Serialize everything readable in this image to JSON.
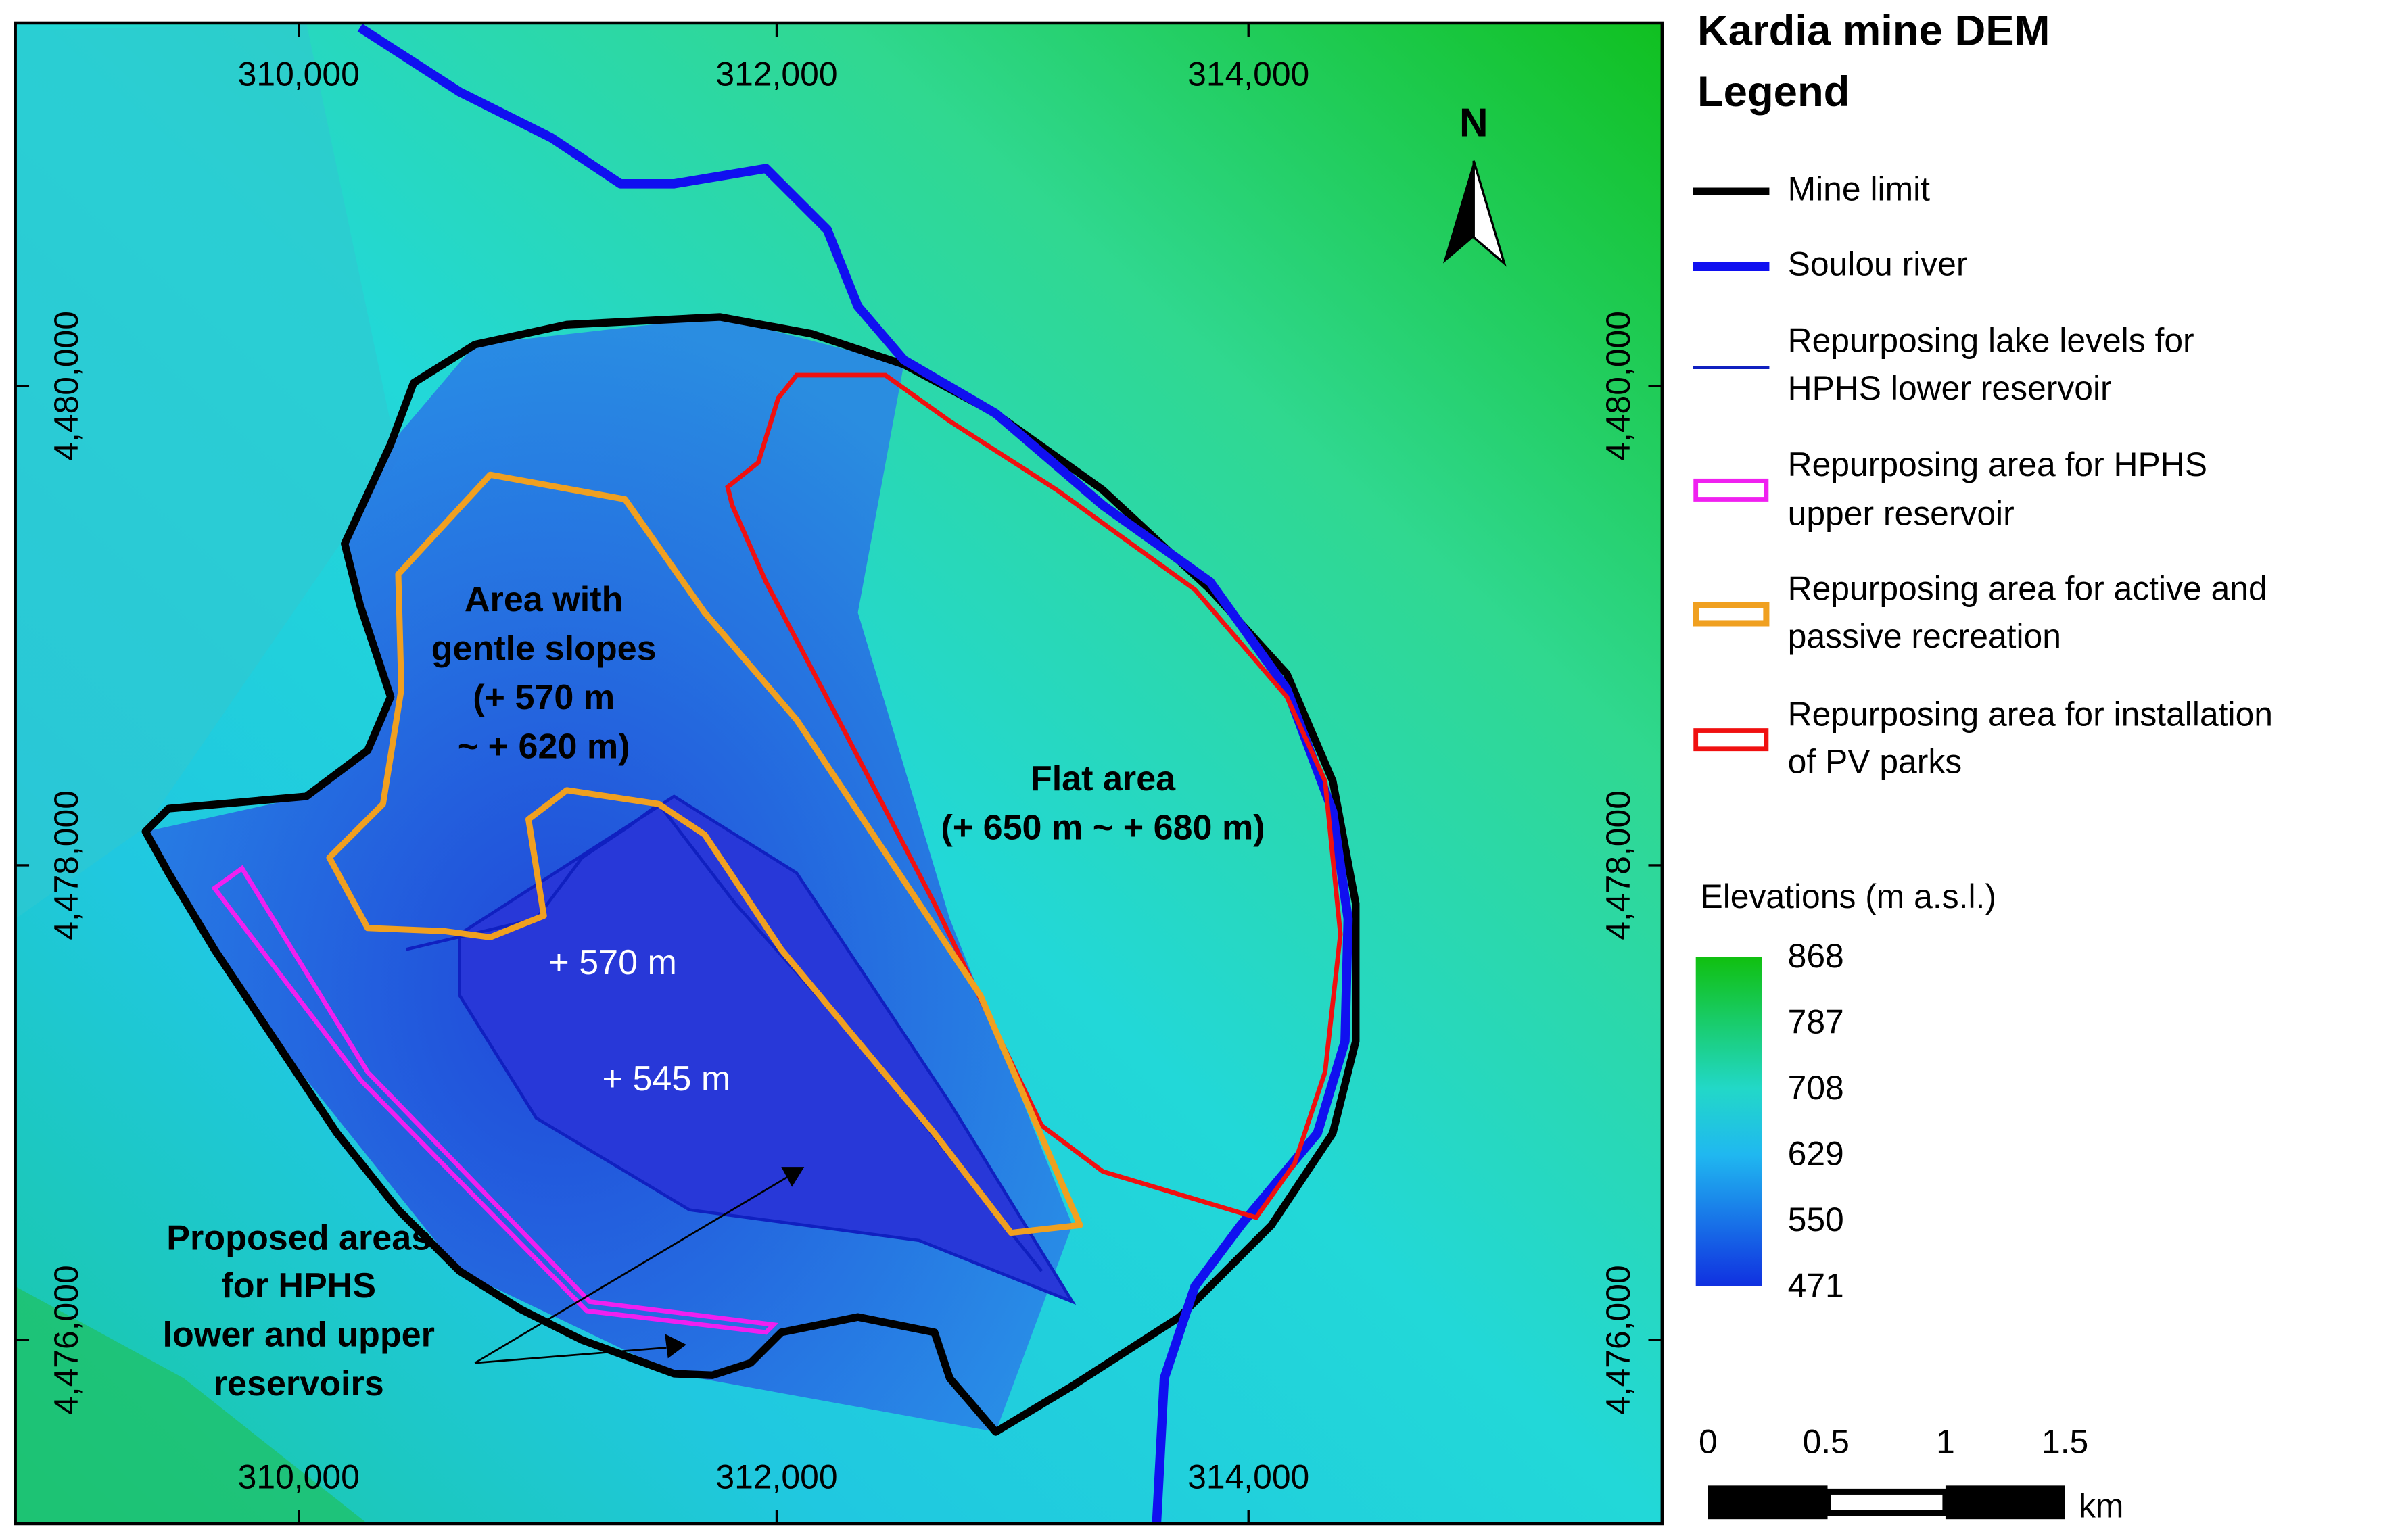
{
  "legend": {
    "title_lines": [
      "Kardia mine DEM",
      "Legend"
    ],
    "items": [
      {
        "lines": [
          "Mine limit"
        ]
      },
      {
        "lines": [
          "Soulou river"
        ]
      },
      {
        "lines": [
          "Repurposing lake levels for",
          "HPHS lower reservoir"
        ]
      },
      {
        "lines": [
          "Repurposing area for HPHS",
          "upper reservoir"
        ]
      },
      {
        "lines": [
          "Repurposing area for active and",
          "passive recreation"
        ]
      },
      {
        "lines": [
          "Repurposing area for installation",
          "of PV parks"
        ]
      }
    ]
  },
  "axes": {
    "x_ticks": [
      "310,000",
      "312,000",
      "314,000"
    ],
    "y_ticks": [
      "4,480,000",
      "4,478,000",
      "4,476,000"
    ]
  },
  "north_arrow": "N",
  "annotations": [
    {
      "lines": [
        "Area with",
        "gentle slopes",
        "(+ 570 m",
        "~ + 620 m)"
      ]
    },
    {
      "lines": [
        "Flat area",
        "(+ 650 m ~ + 680 m)"
      ]
    },
    {
      "lines": [
        "+ 570 m"
      ]
    },
    {
      "lines": [
        "+ 545 m"
      ]
    },
    {
      "lines": [
        "Proposed areas",
        "for HPHS",
        "lower and upper",
        "reservoirs"
      ]
    }
  ],
  "colorbar": {
    "title": "Elevations (m a.s.l.)",
    "labels": [
      868,
      787,
      708,
      629,
      550,
      471
    ]
  },
  "scale_bar": {
    "labels": [
      "0",
      "0.5",
      "1",
      "1.5"
    ],
    "unit": "km"
  }
}
